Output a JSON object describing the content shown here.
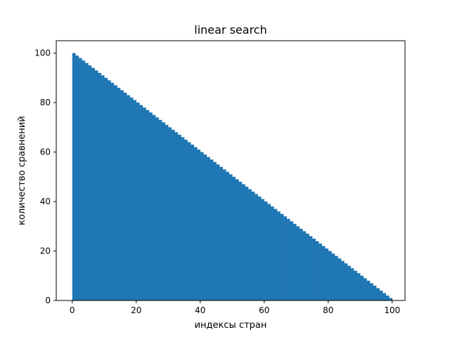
{
  "chart_data": {
    "type": "bar",
    "title": "linear search",
    "xlabel": "индексы стран",
    "ylabel": "количество сравнений",
    "x": [
      0,
      1,
      2,
      3,
      4,
      5,
      6,
      7,
      8,
      9,
      10,
      11,
      12,
      13,
      14,
      15,
      16,
      17,
      18,
      19,
      20,
      21,
      22,
      23,
      24,
      25,
      26,
      27,
      28,
      29,
      30,
      31,
      32,
      33,
      34,
      35,
      36,
      37,
      38,
      39,
      40,
      41,
      42,
      43,
      44,
      45,
      46,
      47,
      48,
      49,
      50,
      51,
      52,
      53,
      54,
      55,
      56,
      57,
      58,
      59,
      60,
      61,
      62,
      63,
      64,
      65,
      66,
      67,
      68,
      69,
      70,
      71,
      72,
      73,
      74,
      75,
      76,
      77,
      78,
      79,
      80,
      81,
      82,
      83,
      84,
      85,
      86,
      87,
      88,
      89,
      90,
      91,
      92,
      93,
      94,
      95,
      96,
      97,
      98,
      99
    ],
    "values": [
      100,
      99,
      98,
      97,
      96,
      95,
      94,
      93,
      92,
      91,
      90,
      89,
      88,
      87,
      86,
      85,
      84,
      83,
      82,
      81,
      80,
      79,
      78,
      77,
      76,
      75,
      74,
      73,
      72,
      71,
      70,
      69,
      68,
      67,
      66,
      65,
      64,
      63,
      62,
      61,
      60,
      59,
      58,
      57,
      56,
      55,
      54,
      53,
      52,
      51,
      50,
      49,
      48,
      47,
      46,
      45,
      44,
      43,
      42,
      41,
      40,
      39,
      38,
      37,
      36,
      35,
      34,
      33,
      32,
      31,
      30,
      29,
      28,
      27,
      26,
      25,
      24,
      23,
      22,
      21,
      20,
      19,
      18,
      17,
      16,
      15,
      14,
      13,
      12,
      11,
      10,
      9,
      8,
      7,
      6,
      5,
      4,
      3,
      2,
      1
    ],
    "xlim": [
      -5,
      104
    ],
    "ylim": [
      0,
      105
    ],
    "xticks": [
      0,
      20,
      40,
      60,
      80,
      100
    ],
    "yticks": [
      0,
      20,
      40,
      60,
      80,
      100
    ],
    "bar_color": "#1f77b4",
    "grid": false
  }
}
